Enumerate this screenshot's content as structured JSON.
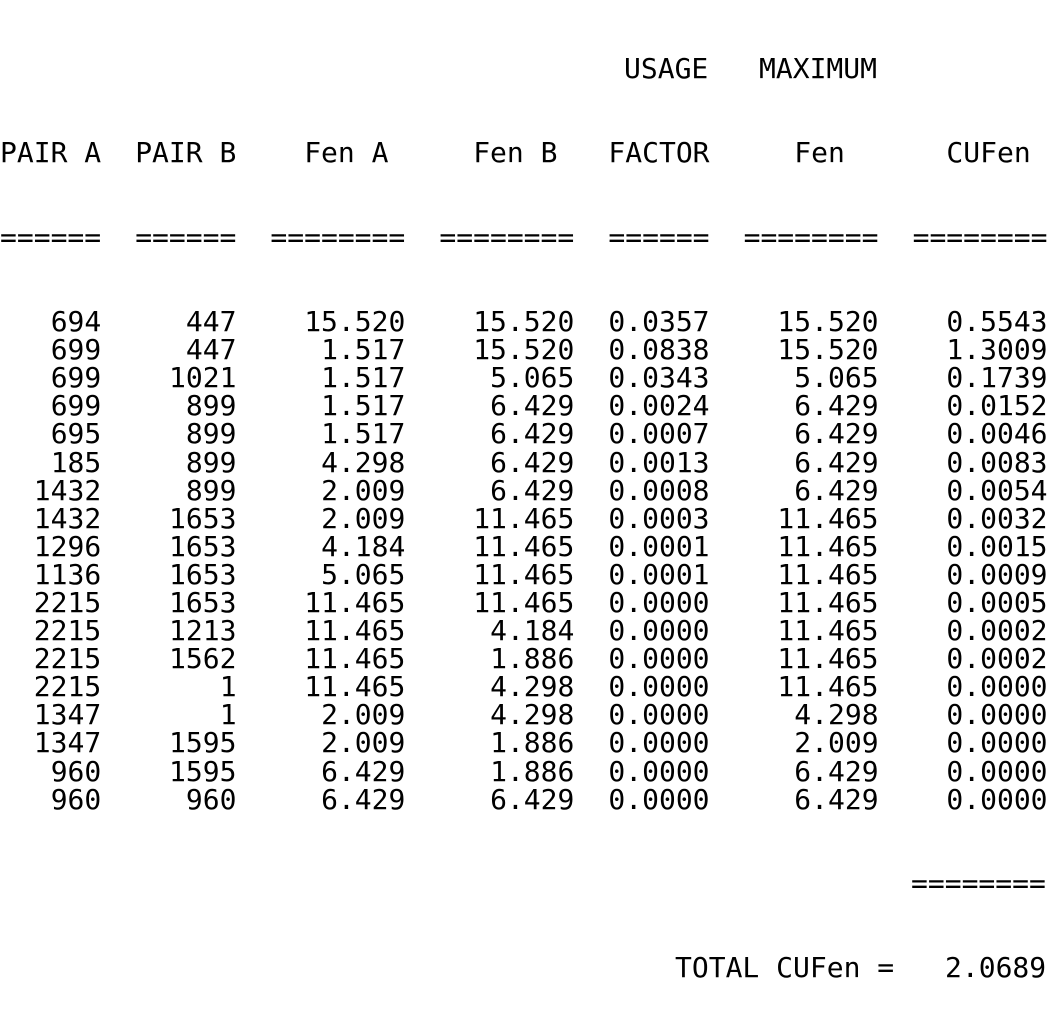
{
  "header_top": {
    "usage": "USAGE",
    "maximum": "MAXIMUM"
  },
  "columns": [
    "PAIR A",
    "PAIR B",
    "Fen A",
    "Fen B",
    "FACTOR",
    "Fen",
    "CUFen"
  ],
  "underlines": [
    "======",
    "======",
    "========",
    "========",
    "======",
    "========",
    "========"
  ],
  "rows": [
    [
      "694",
      "447",
      "15.520",
      "15.520",
      "0.0357",
      "15.520",
      "0.5543"
    ],
    [
      "699",
      "447",
      "1.517",
      "15.520",
      "0.0838",
      "15.520",
      "1.3009"
    ],
    [
      "699",
      "1021",
      "1.517",
      "5.065",
      "0.0343",
      "5.065",
      "0.1739"
    ],
    [
      "699",
      "899",
      "1.517",
      "6.429",
      "0.0024",
      "6.429",
      "0.0152"
    ],
    [
      "695",
      "899",
      "1.517",
      "6.429",
      "0.0007",
      "6.429",
      "0.0046"
    ],
    [
      "185",
      "899",
      "4.298",
      "6.429",
      "0.0013",
      "6.429",
      "0.0083"
    ],
    [
      "1432",
      "899",
      "2.009",
      "6.429",
      "0.0008",
      "6.429",
      "0.0054"
    ],
    [
      "1432",
      "1653",
      "2.009",
      "11.465",
      "0.0003",
      "11.465",
      "0.0032"
    ],
    [
      "1296",
      "1653",
      "4.184",
      "11.465",
      "0.0001",
      "11.465",
      "0.0015"
    ],
    [
      "1136",
      "1653",
      "5.065",
      "11.465",
      "0.0001",
      "11.465",
      "0.0009"
    ],
    [
      "2215",
      "1653",
      "11.465",
      "11.465",
      "0.0000",
      "11.465",
      "0.0005"
    ],
    [
      "2215",
      "1213",
      "11.465",
      "4.184",
      "0.0000",
      "11.465",
      "0.0002"
    ],
    [
      "2215",
      "1562",
      "11.465",
      "1.886",
      "0.0000",
      "11.465",
      "0.0002"
    ],
    [
      "2215",
      "1",
      "11.465",
      "4.298",
      "0.0000",
      "11.465",
      "0.0000"
    ],
    [
      "1347",
      "1",
      "2.009",
      "4.298",
      "0.0000",
      "4.298",
      "0.0000"
    ],
    [
      "1347",
      "1595",
      "2.009",
      "1.886",
      "0.0000",
      "2.009",
      "0.0000"
    ],
    [
      "960",
      "1595",
      "6.429",
      "1.886",
      "0.0000",
      "6.429",
      "0.0000"
    ],
    [
      "960",
      "960",
      "6.429",
      "6.429",
      "0.0000",
      "6.429",
      "0.0000"
    ]
  ],
  "total": {
    "underline": "========",
    "label": "TOTAL CUFen =",
    "value": "2.0689"
  }
}
